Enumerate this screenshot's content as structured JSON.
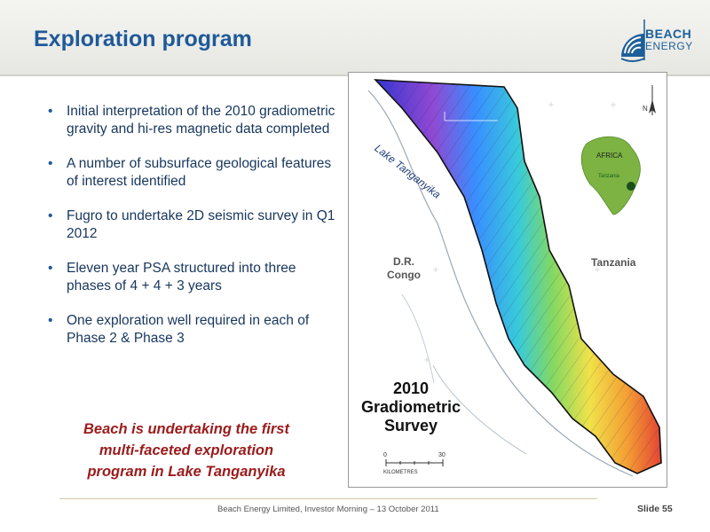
{
  "slide": {
    "title": "Exploration program",
    "logo": {
      "line1": "BEACH",
      "line2": "ENERGY"
    },
    "bullets": [
      "Initial interpretation of the 2010 gradiometric gravity and hi-res magnetic data completed",
      "A number of subsurface geological features of interest identified",
      "Fugro to undertake 2D seismic survey in Q1 2012",
      "Eleven year PSA structured into three phases of 4 + 4 + 3 years",
      "One exploration well required in each of Phase 2 & Phase 3"
    ],
    "bullet_glyph": "•",
    "callout_lines": [
      "Beach is undertaking the first",
      "multi-faceted  exploration",
      "program in Lake Tanganyika"
    ],
    "map": {
      "lake_label": "Lake Tanganyika",
      "drc_lines": [
        "D.R.",
        "Congo"
      ],
      "tanzania_label": "Tanzania",
      "inset_africa_label": "AFRICA",
      "inset_tanzania_label": "Tanzania",
      "survey_lines": [
        "2010",
        "Gradiometric",
        "Survey"
      ],
      "scale_start": "0",
      "scale_end": "30",
      "scale_unit": "KILOMETRES",
      "north_label": "N"
    },
    "footer": "Beach Energy Limited, Investor Morning – 13 October 2011",
    "slide_number": "Slide 55"
  },
  "colors": {
    "title": "#1f5a99",
    "bullet_text": "#17365d",
    "callout": "#9b1b1b",
    "logo": "#1d5f99",
    "lake_outline": "#9aa9b8",
    "inset_green": "#7cb342"
  }
}
